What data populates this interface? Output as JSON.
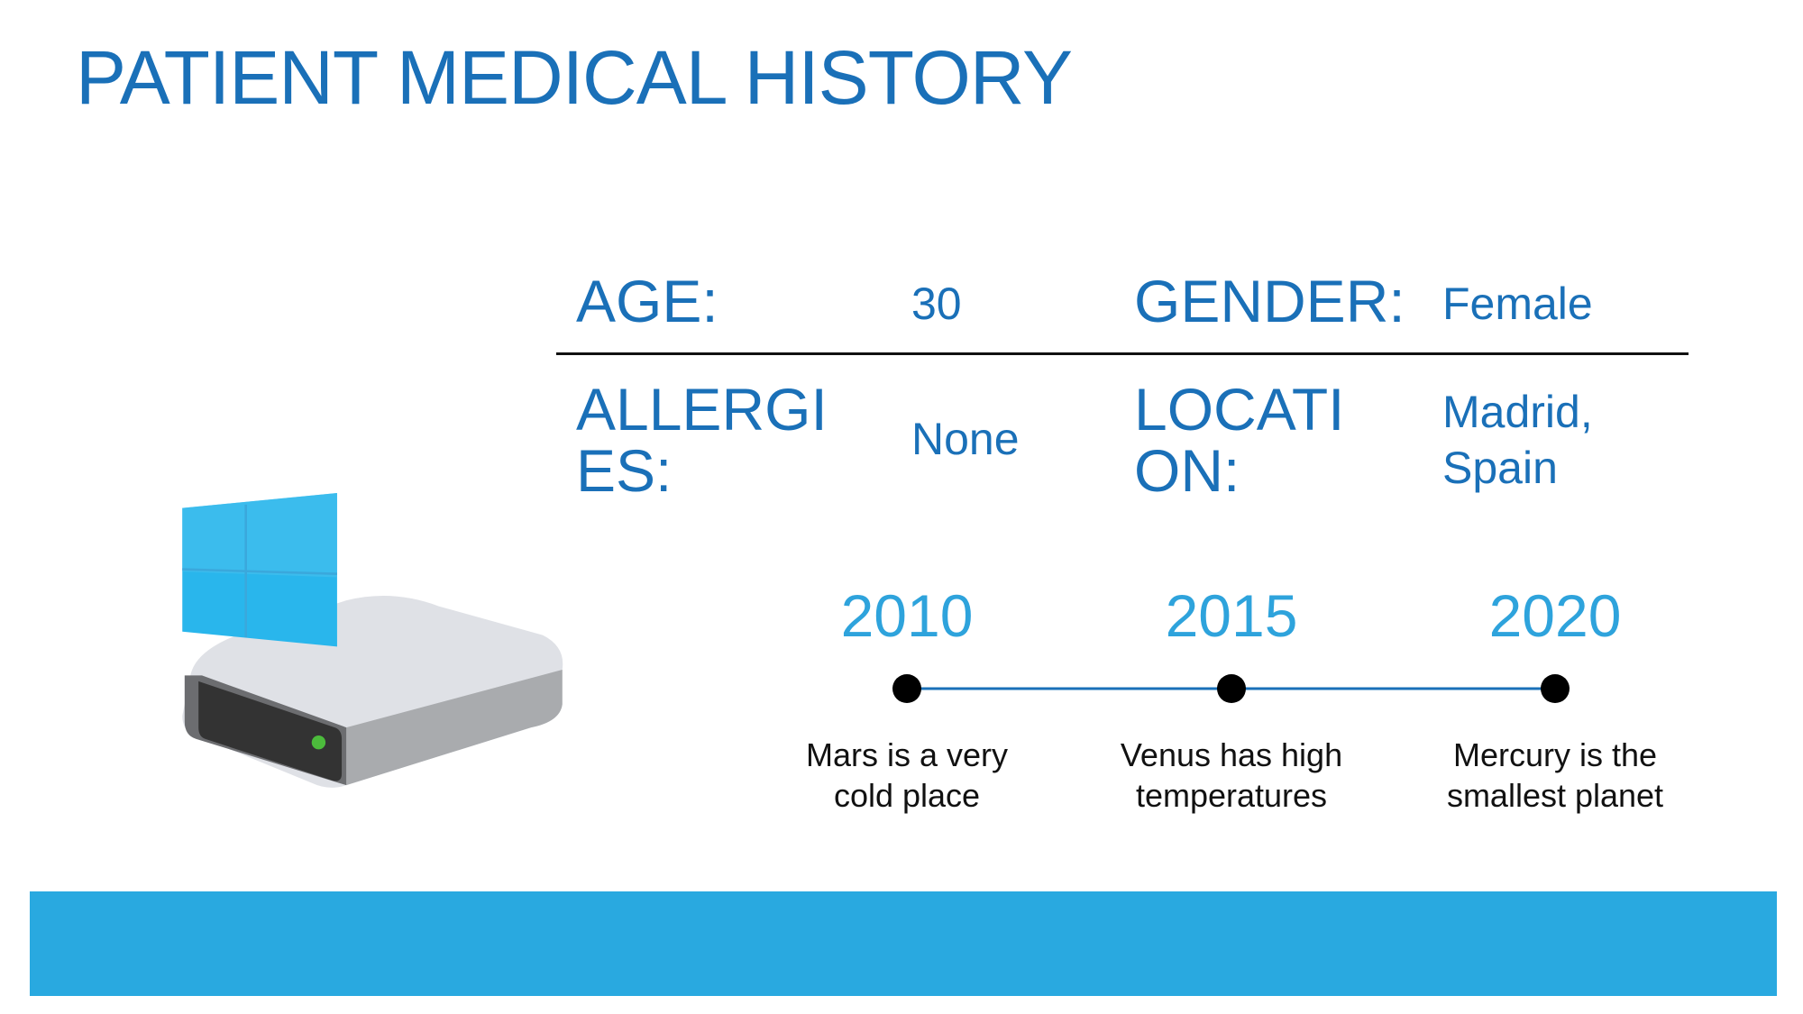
{
  "title": "PATIENT MEDICAL HISTORY",
  "details": [
    [
      {
        "label": "AGE:",
        "value": "30"
      },
      {
        "label": "GENDER:",
        "value": "Female"
      }
    ],
    [
      {
        "label": "ALLERGIES:",
        "value": "None"
      },
      {
        "label": "LOCATION:",
        "value": "Madrid, Spain"
      }
    ]
  ],
  "timeline": [
    {
      "year": "2010",
      "text": "Mars is a very cold place"
    },
    {
      "year": "2015",
      "text": "Venus has high temperatures"
    },
    {
      "year": "2020",
      "text": "Mercury is the smallest planet"
    }
  ]
}
